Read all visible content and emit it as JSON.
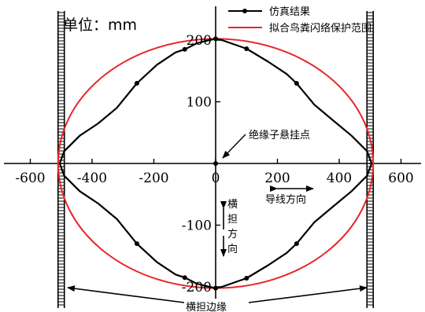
{
  "chart_data": {
    "type": "line",
    "unit_label": "单位：mm",
    "x_ticks": [
      -600,
      -400,
      -200,
      0,
      200,
      400,
      600
    ],
    "y_ticks": [
      -200,
      -100,
      0,
      100,
      200
    ],
    "xlim": [
      -600,
      600
    ],
    "ylim": [
      -250,
      250
    ],
    "series": [
      {
        "name": "仿真结果",
        "color": "#000000",
        "marker": "dot",
        "points": [
          [
            -505,
            0
          ],
          [
            -490,
            20
          ],
          [
            -440,
            45
          ],
          [
            -380,
            65
          ],
          [
            -320,
            90
          ],
          [
            -255,
            130
          ],
          [
            -190,
            160
          ],
          [
            -130,
            180
          ],
          [
            -100,
            185
          ],
          [
            -60,
            195
          ],
          [
            -20,
            200
          ],
          [
            0,
            202
          ],
          [
            20,
            200
          ],
          [
            60,
            193
          ],
          [
            100,
            186
          ],
          [
            170,
            165
          ],
          [
            230,
            145
          ],
          [
            262,
            130
          ],
          [
            320,
            95
          ],
          [
            380,
            70
          ],
          [
            440,
            45
          ],
          [
            490,
            20
          ],
          [
            505,
            0
          ],
          [
            490,
            -20
          ],
          [
            440,
            -45
          ],
          [
            380,
            -70
          ],
          [
            320,
            -95
          ],
          [
            262,
            -130
          ],
          [
            230,
            -145
          ],
          [
            170,
            -165
          ],
          [
            100,
            -186
          ],
          [
            60,
            -193
          ],
          [
            20,
            -200
          ],
          [
            0,
            -202
          ],
          [
            -20,
            -200
          ],
          [
            -60,
            -195
          ],
          [
            -100,
            -185
          ],
          [
            -130,
            -180
          ],
          [
            -190,
            -160
          ],
          [
            -255,
            -130
          ],
          [
            -320,
            -90
          ],
          [
            -380,
            -65
          ],
          [
            -440,
            -45
          ],
          [
            -490,
            -20
          ],
          [
            -505,
            0
          ]
        ],
        "markers": [
          [
            -100,
            185
          ],
          [
            -255,
            130
          ],
          [
            0,
            202
          ],
          [
            100,
            186
          ],
          [
            262,
            130
          ],
          [
            -100,
            -185
          ],
          [
            -255,
            -130
          ],
          [
            0,
            -202
          ],
          [
            100,
            -186
          ],
          [
            262,
            -130
          ],
          [
            0,
            0
          ]
        ]
      },
      {
        "name": "拟合鸟粪闪络保护范围",
        "color": "#e8262a",
        "shape": "ellipse",
        "a": 510,
        "b": 202
      }
    ],
    "crossarm_x": [
      -500,
      500
    ],
    "annotations": {
      "suspension_point": "绝缘子悬挂点",
      "conductor_direction": "导线方向",
      "crossarm_direction_chars": [
        "横",
        "担",
        "方",
        "向"
      ],
      "crossarm_edge": "横担边缘"
    }
  }
}
